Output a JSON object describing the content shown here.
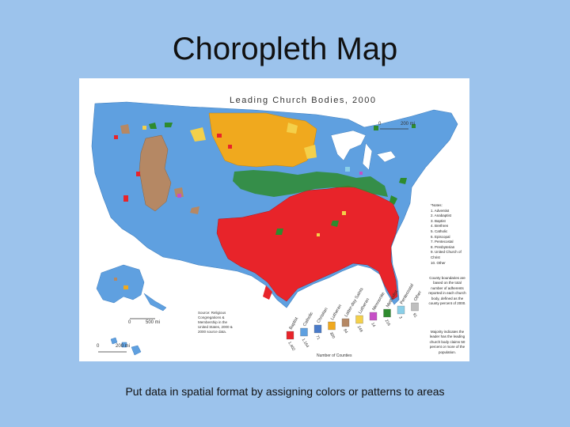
{
  "slide": {
    "title": "Choropleth Map",
    "caption": "Put data in spatial format by assigning colors or patterns to areas"
  },
  "map": {
    "title": "Leading Church Bodies, 2000",
    "scale_main": "200 mi",
    "scale_main_zero": "0",
    "scale_alaska": "500 mi",
    "scale_alaska_zero": "0",
    "scale_hawaii": "200 mi",
    "scale_hawaii_zero": "0",
    "source_note": "Source: Religious Congregations & Membership in the United States, 2000 & 2000 source data.",
    "legend_note": "County boundaries are based on the total number of adherents reported in each church body, defined as the county percent of 2000.",
    "legend_note2": "Majority indicates the leader has the leading church body claims 50 percent or more of the population.",
    "legend_axis_label": "Number of Counties",
    "colors": {
      "baptist": "#e8242a",
      "catholic": "#5fa0e0",
      "methodist": "#2e8b2e",
      "lutheran": "#f0a91e",
      "lds": "#b58864",
      "pentecostal": "#d4e84a",
      "mennonite": "#c64fc6",
      "episcopal": "#8acfe8",
      "other": "#bfbfbf"
    },
    "legend_items": [
      {
        "label": "Baptist",
        "count": "1,402",
        "color": "#e8242a"
      },
      {
        "label": "Catholic",
        "count": "1,164",
        "color": "#5fa0e0"
      },
      {
        "label": "Christian",
        "count": "71",
        "color": "#4a7bc9"
      },
      {
        "label": "Lutheran",
        "count": "300",
        "color": "#f0a91e"
      },
      {
        "label": "Latter-day Saints",
        "count": "84",
        "color": "#b58864"
      },
      {
        "label": "Lutheran",
        "count": "248",
        "color": "#f4d04a"
      },
      {
        "label": "Mennonite",
        "count": "14",
        "color": "#c64fc6"
      },
      {
        "label": "Methodist",
        "count": "216",
        "color": "#2e8b2e"
      },
      {
        "label": "Pentecostal",
        "count": "3",
        "color": "#8acfe8"
      },
      {
        "label": "Other",
        "count": "91",
        "color": "#bfbfbf"
      }
    ],
    "legend_list": [
      "*Notes:",
      "1. Adventist",
      "2. Anabaptist",
      "3. Baptist",
      "4. Brethren",
      "5. Catholic",
      "6. Episcopal",
      "7. Pentecostal",
      "8. Presbyterian",
      "9. United Church of Christ",
      "10. Other"
    ]
  }
}
